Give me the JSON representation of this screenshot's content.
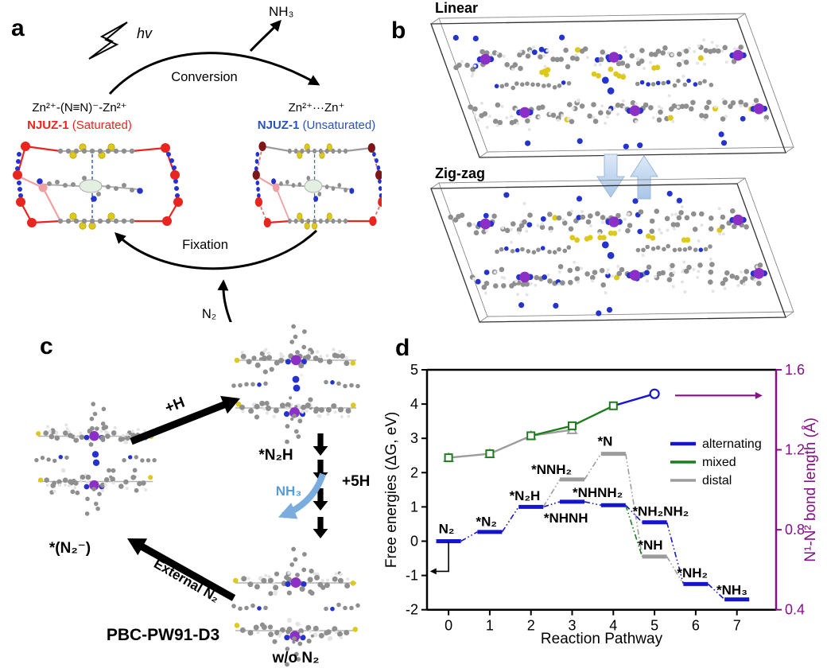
{
  "figure": {
    "panel_a": {
      "tag": "a",
      "hv_label": "hv",
      "nh3_label": "NH₃",
      "conversion_label": "Conversion",
      "fixation_label": "Fixation",
      "n2_label": "N₂",
      "saturated_formula": "Zn²⁺-(N≡N)⁻-Zn²⁺",
      "saturated_name": "NJUZ-1",
      "saturated_state": " (Saturated)",
      "unsaturated_formula": "Zn²⁺···Zn⁺",
      "unsaturated_name": "NJUZ-1",
      "unsaturated_state": " (Unsaturated)",
      "saturated_color": "#e8251f",
      "unsaturated_color": "#2a52b8"
    },
    "panel_b": {
      "tag": "b",
      "top_label": "Linear",
      "bottom_label": "Zig-zag"
    },
    "panel_c": {
      "tag": "c",
      "plus_h_label": "+H",
      "n2h_label": "*N₂H",
      "plus_5h_label": "+5H",
      "nh3_label": "NH₃",
      "n2_anion_label": "*(N₂⁻)",
      "external_n2_label": "External N₂",
      "method_label": "PBC-PW91-D3",
      "wo_n2_label": "w/o N₂",
      "nh3_color": "#5b9bd5"
    },
    "panel_d": {
      "tag": "d"
    },
    "atom_colors": {
      "carbon": "#8f8f8f",
      "hydrogen": "#e4e4e4",
      "nitrogen": "#2433cf",
      "sulfur": "#ddc91c",
      "zinc": "#8c2fc7",
      "frame_red": "#e8251f",
      "frame_dark_red": "#7d1616"
    }
  },
  "chart_data": {
    "type": "line",
    "title": "",
    "xlabel": "Reaction Pathway",
    "ylabel_left": "Free energies (ΔG, eV)",
    "ylabel_right": "N¹-N² bond length (Å)",
    "xlim": [
      -0.55,
      7.95
    ],
    "ylim_left": [
      -2,
      5
    ],
    "ylim_right": [
      0.4,
      1.6
    ],
    "xticks": [
      0,
      1,
      2,
      3,
      4,
      5,
      6,
      7
    ],
    "yticks_left": [
      -2,
      -1,
      0,
      1,
      2,
      3,
      4,
      5
    ],
    "yticks_right": [
      0.4,
      0.8,
      1.2,
      1.6
    ],
    "grid": false,
    "axis_colors": {
      "left": "#000000",
      "right": "#870f87"
    },
    "series_colors": {
      "alternating": "#1515d0",
      "mixed": "#1c7d1c",
      "distal": "#9c9c9c"
    },
    "legend": {
      "position": "center-right",
      "entries": [
        {
          "label": "alternating",
          "series": "alternating"
        },
        {
          "label": "mixed",
          "series": "mixed"
        },
        {
          "label": "distal",
          "series": "distal"
        }
      ]
    },
    "energy_levels": [
      {
        "label": "N₂",
        "x": 0,
        "G_eV": 0.0,
        "series": "alternating",
        "label_x": -0.05,
        "label_y": 0.37
      },
      {
        "label": "*N₂",
        "x": 1,
        "G_eV": 0.27,
        "series": "alternating",
        "label_x": 0.92,
        "label_y": 0.58
      },
      {
        "label": "*N₂H",
        "x": 2,
        "G_eV": 1.0,
        "series": "alternating",
        "label_x": 1.85,
        "label_y": 1.33
      },
      {
        "label": "*NHNH",
        "x": 3,
        "G_eV": 1.15,
        "series": "alternating",
        "label_x": 2.85,
        "label_y": 0.68
      },
      {
        "label": "*NHNH₂",
        "x": 4,
        "G_eV": 1.05,
        "series": "alternating",
        "label_x": 3.62,
        "label_y": 1.43
      },
      {
        "label": "*NH₂NH₂",
        "x": 5,
        "G_eV": 0.55,
        "series": "alternating",
        "label_x": 5.15,
        "label_y": 0.88
      },
      {
        "label": "*NH₂",
        "x": 6,
        "G_eV": -1.25,
        "series": "alternating",
        "label_x": 5.92,
        "label_y": -0.92
      },
      {
        "label": "*NH₃",
        "x": 7,
        "G_eV": -1.7,
        "series": "alternating",
        "label_x": 6.88,
        "label_y": -1.42
      },
      {
        "label": "*NNH₂",
        "x": 3,
        "G_eV": 1.8,
        "series": "distal",
        "label_x": 2.5,
        "label_y": 2.1
      },
      {
        "label": "*N",
        "x": 4,
        "G_eV": 2.55,
        "series": "distal",
        "label_x": 3.8,
        "label_y": 2.92
      },
      {
        "label": "*NH",
        "x": 5,
        "G_eV": -0.45,
        "series": "distal",
        "label_x": 4.9,
        "label_y": -0.1
      }
    ],
    "level_half_width": 0.3,
    "connectors": [
      {
        "series": "alternating",
        "from": [
          0.3,
          0.0
        ],
        "to": [
          0.7,
          0.27
        ]
      },
      {
        "series": "alternating",
        "from": [
          1.3,
          0.27
        ],
        "to": [
          1.7,
          1.0
        ]
      },
      {
        "series": "alternating",
        "from": [
          2.3,
          1.0
        ],
        "to": [
          2.7,
          1.15
        ]
      },
      {
        "series": "alternating",
        "from": [
          3.3,
          1.15
        ],
        "to": [
          3.7,
          1.05
        ]
      },
      {
        "series": "alternating",
        "from": [
          4.3,
          1.05
        ],
        "to": [
          4.7,
          0.55
        ]
      },
      {
        "series": "alternating",
        "from": [
          5.3,
          0.55
        ],
        "to": [
          5.7,
          -1.25
        ]
      },
      {
        "series": "alternating",
        "from": [
          6.3,
          -1.25
        ],
        "to": [
          6.7,
          -1.7
        ]
      },
      {
        "series": "distal",
        "from": [
          2.3,
          1.0
        ],
        "to": [
          2.7,
          1.8
        ]
      },
      {
        "series": "distal",
        "from": [
          3.3,
          1.8
        ],
        "to": [
          3.7,
          2.55
        ]
      },
      {
        "series": "distal",
        "from": [
          4.3,
          2.55
        ],
        "to": [
          4.7,
          -0.45
        ]
      },
      {
        "series": "distal",
        "from": [
          5.3,
          -0.45
        ],
        "to": [
          5.7,
          -1.25
        ]
      },
      {
        "series": "mixed",
        "from": [
          4.3,
          1.05
        ],
        "to": [
          4.7,
          -0.45
        ]
      }
    ],
    "bond_length_curves": [
      {
        "series": "distal",
        "marker": "triangle",
        "x": [
          0,
          1,
          2,
          3
        ],
        "length_A": [
          1.16,
          1.18,
          1.27,
          1.3
        ]
      },
      {
        "series": "mixed",
        "marker": "square",
        "x": [
          0,
          1,
          2,
          3,
          4
        ],
        "length_A": [
          1.16,
          1.18,
          1.27,
          1.32,
          1.42
        ],
        "line_from_x": 2
      },
      {
        "series": "alternating",
        "marker": "circle",
        "x": [
          4,
          5
        ],
        "length_A": [
          1.42,
          1.48
        ]
      }
    ],
    "annotations": {
      "left_axis_pointer": {
        "x": 0,
        "from_G": -0.02,
        "to_G": -0.88,
        "tail_x": -0.45,
        "color": "#000000"
      },
      "right_axis_pointer": {
        "G": 4.25,
        "from_x": 5.5,
        "to_x": 7.62,
        "color": "#870f87"
      }
    }
  }
}
